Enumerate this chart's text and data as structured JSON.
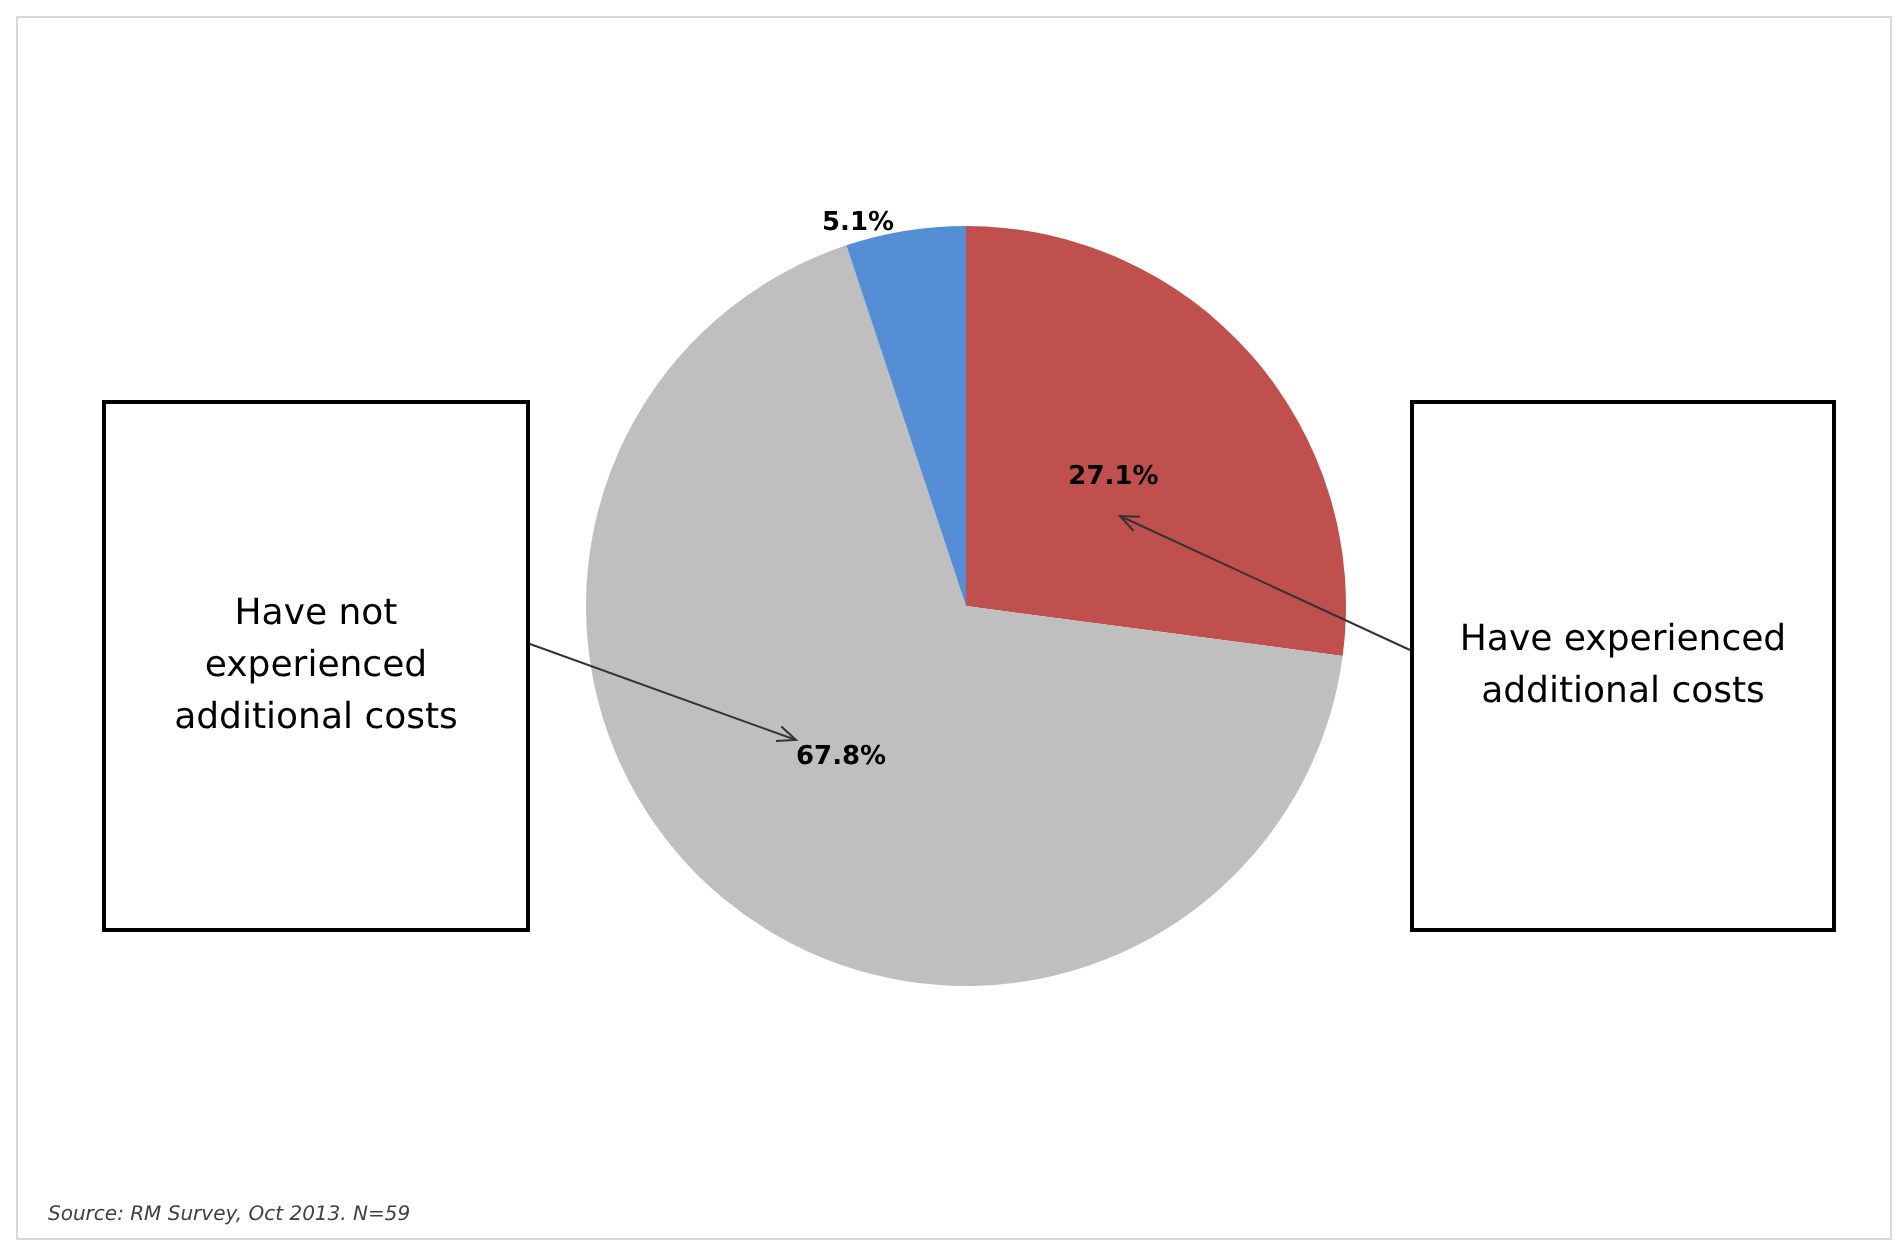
{
  "chart_data": {
    "type": "pie",
    "categories": [
      "Have experienced additional costs",
      "Have not experienced additional costs",
      null
    ],
    "values": [
      27.1,
      67.8,
      5.1
    ],
    "colors": [
      "#c0504d",
      "#bfbfbf",
      "#558ed5"
    ],
    "value_labels": [
      "27.1%",
      "67.8%",
      "5.1%"
    ],
    "annotations": [
      "Source: RM Survey, Oct 2013.  N=59"
    ]
  }
}
